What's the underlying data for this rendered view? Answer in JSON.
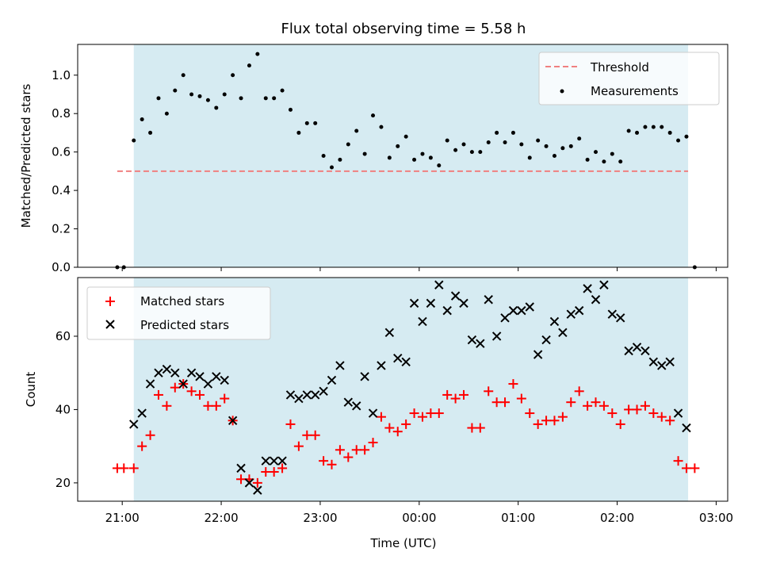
{
  "chart_data": [
    {
      "type": "scatter",
      "title": "Flux total observing time = 5.58 h",
      "xlabel": "",
      "ylabel": "Matched/Predicted stars",
      "xlim": [
        "20:33",
        "03:07"
      ],
      "ylim": [
        0,
        1.16
      ],
      "yticks": [
        0.0,
        0.2,
        0.4,
        0.6,
        0.8,
        1.0
      ],
      "xticks": [
        "21:00",
        "22:00",
        "23:00",
        "00:00",
        "01:00",
        "02:00",
        "03:00"
      ],
      "shaded_region": {
        "start": "21:07",
        "end": "02:43",
        "color": "#add8e6"
      },
      "threshold": {
        "name": "Threshold",
        "value": 0.5,
        "x": [
          "20:57",
          "02:43"
        ],
        "color": "#f08080"
      },
      "legend": {
        "position": "top-right",
        "entries": [
          "Threshold",
          "Measurements"
        ]
      },
      "series": [
        {
          "name": "Measurements",
          "marker": "dot",
          "color": "#000000",
          "x": [
            "20:57",
            "21:01",
            "21:07",
            "21:12",
            "21:17",
            "21:22",
            "21:27",
            "21:32",
            "21:37",
            "21:42",
            "21:47",
            "21:52",
            "21:57",
            "22:02",
            "22:07",
            "22:12",
            "22:17",
            "22:22",
            "22:27",
            "22:32",
            "22:37",
            "22:42",
            "22:47",
            "22:52",
            "22:57",
            "23:02",
            "23:07",
            "23:12",
            "23:17",
            "23:22",
            "23:27",
            "23:32",
            "23:37",
            "23:42",
            "23:47",
            "23:52",
            "23:57",
            "00:02",
            "00:07",
            "00:12",
            "00:17",
            "00:22",
            "00:27",
            "00:32",
            "00:37",
            "00:42",
            "00:47",
            "00:52",
            "00:57",
            "01:02",
            "01:07",
            "01:12",
            "01:17",
            "01:22",
            "01:27",
            "01:32",
            "01:37",
            "01:42",
            "01:47",
            "01:52",
            "01:57",
            "02:02",
            "02:07",
            "02:12",
            "02:17",
            "02:22",
            "02:27",
            "02:32",
            "02:37",
            "02:42",
            "02:47"
          ],
          "y": [
            0.0,
            0.0,
            0.66,
            0.77,
            0.7,
            0.88,
            0.8,
            0.92,
            1.0,
            0.9,
            0.89,
            0.87,
            0.83,
            0.9,
            1.0,
            0.88,
            1.05,
            1.11,
            0.88,
            0.88,
            0.92,
            0.82,
            0.7,
            0.75,
            0.75,
            0.58,
            0.52,
            0.56,
            0.64,
            0.71,
            0.59,
            0.79,
            0.73,
            0.57,
            0.63,
            0.68,
            0.56,
            0.59,
            0.57,
            0.53,
            0.66,
            0.61,
            0.64,
            0.6,
            0.6,
            0.65,
            0.7,
            0.65,
            0.7,
            0.64,
            0.57,
            0.66,
            0.63,
            0.58,
            0.62,
            0.63,
            0.67,
            0.56,
            0.6,
            0.55,
            0.59,
            0.55,
            0.71,
            0.7,
            0.73,
            0.73,
            0.73,
            0.7,
            0.66,
            0.68,
            0.0
          ]
        }
      ]
    },
    {
      "type": "scatter",
      "title": "",
      "xlabel": "Time (UTC)",
      "ylabel": "Count",
      "xlim": [
        "20:33",
        "03:07"
      ],
      "ylim": [
        15,
        76
      ],
      "yticks": [
        20,
        40,
        60
      ],
      "xticks": [
        "21:00",
        "22:00",
        "23:00",
        "00:00",
        "01:00",
        "02:00",
        "03:00"
      ],
      "shaded_region": {
        "start": "21:07",
        "end": "02:43",
        "color": "#add8e6"
      },
      "legend": {
        "position": "top-left",
        "entries": [
          "Matched stars",
          "Predicted stars"
        ]
      },
      "series": [
        {
          "name": "Matched stars",
          "marker": "plus",
          "color": "#ff0000",
          "x": [
            "20:57",
            "21:01",
            "21:07",
            "21:12",
            "21:17",
            "21:22",
            "21:27",
            "21:32",
            "21:37",
            "21:42",
            "21:47",
            "21:52",
            "21:57",
            "22:02",
            "22:07",
            "22:12",
            "22:17",
            "22:22",
            "22:27",
            "22:32",
            "22:37",
            "22:42",
            "22:47",
            "22:52",
            "22:57",
            "23:02",
            "23:07",
            "23:12",
            "23:17",
            "23:22",
            "23:27",
            "23:32",
            "23:37",
            "23:42",
            "23:47",
            "23:52",
            "23:57",
            "00:02",
            "00:07",
            "00:12",
            "00:17",
            "00:22",
            "00:27",
            "00:32",
            "00:37",
            "00:42",
            "00:47",
            "00:52",
            "00:57",
            "01:02",
            "01:07",
            "01:12",
            "01:17",
            "01:22",
            "01:27",
            "01:32",
            "01:37",
            "01:42",
            "01:47",
            "01:52",
            "01:57",
            "02:02",
            "02:07",
            "02:12",
            "02:17",
            "02:22",
            "02:27",
            "02:32",
            "02:37",
            "02:42",
            "02:47"
          ],
          "y": [
            24,
            24,
            24,
            30,
            33,
            44,
            41,
            46,
            47,
            45,
            44,
            41,
            41,
            43,
            37,
            21,
            21,
            20,
            23,
            23,
            24,
            36,
            30,
            33,
            33,
            26,
            25,
            29,
            27,
            29,
            29,
            31,
            38,
            35,
            34,
            36,
            39,
            38,
            39,
            39,
            44,
            43,
            44,
            35,
            35,
            45,
            42,
            42,
            47,
            43,
            39,
            36,
            37,
            37,
            38,
            42,
            45,
            41,
            42,
            41,
            39,
            36,
            40,
            40,
            41,
            39,
            38,
            37,
            26,
            24,
            24
          ]
        },
        {
          "name": "Predicted stars",
          "marker": "x",
          "color": "#000000",
          "x": [
            "21:07",
            "21:12",
            "21:17",
            "21:22",
            "21:27",
            "21:32",
            "21:37",
            "21:42",
            "21:47",
            "21:52",
            "21:57",
            "22:02",
            "22:07",
            "22:12",
            "22:17",
            "22:22",
            "22:27",
            "22:32",
            "22:37",
            "22:42",
            "22:47",
            "22:52",
            "22:57",
            "23:02",
            "23:07",
            "23:12",
            "23:17",
            "23:22",
            "23:27",
            "23:32",
            "23:37",
            "23:42",
            "23:47",
            "23:52",
            "23:57",
            "00:02",
            "00:07",
            "00:12",
            "00:17",
            "00:22",
            "00:27",
            "00:32",
            "00:37",
            "00:42",
            "00:47",
            "00:52",
            "00:57",
            "01:02",
            "01:07",
            "01:12",
            "01:17",
            "01:22",
            "01:27",
            "01:32",
            "01:37",
            "01:42",
            "01:47",
            "01:52",
            "01:57",
            "02:02",
            "02:07",
            "02:12",
            "02:17",
            "02:22",
            "02:27",
            "02:32",
            "02:37",
            "02:42"
          ],
          "y": [
            36,
            39,
            47,
            50,
            51,
            50,
            47,
            50,
            49,
            47,
            49,
            48,
            37,
            24,
            20,
            18,
            26,
            26,
            26,
            44,
            43,
            44,
            44,
            45,
            48,
            52,
            42,
            41,
            49,
            39,
            52,
            61,
            54,
            53,
            69,
            64,
            69,
            74,
            67,
            71,
            69,
            59,
            58,
            70,
            60,
            65,
            67,
            67,
            68,
            55,
            59,
            64,
            61,
            66,
            67,
            73,
            70,
            74,
            66,
            65,
            56,
            57,
            56,
            53,
            52,
            53,
            39,
            35
          ]
        }
      ]
    }
  ]
}
